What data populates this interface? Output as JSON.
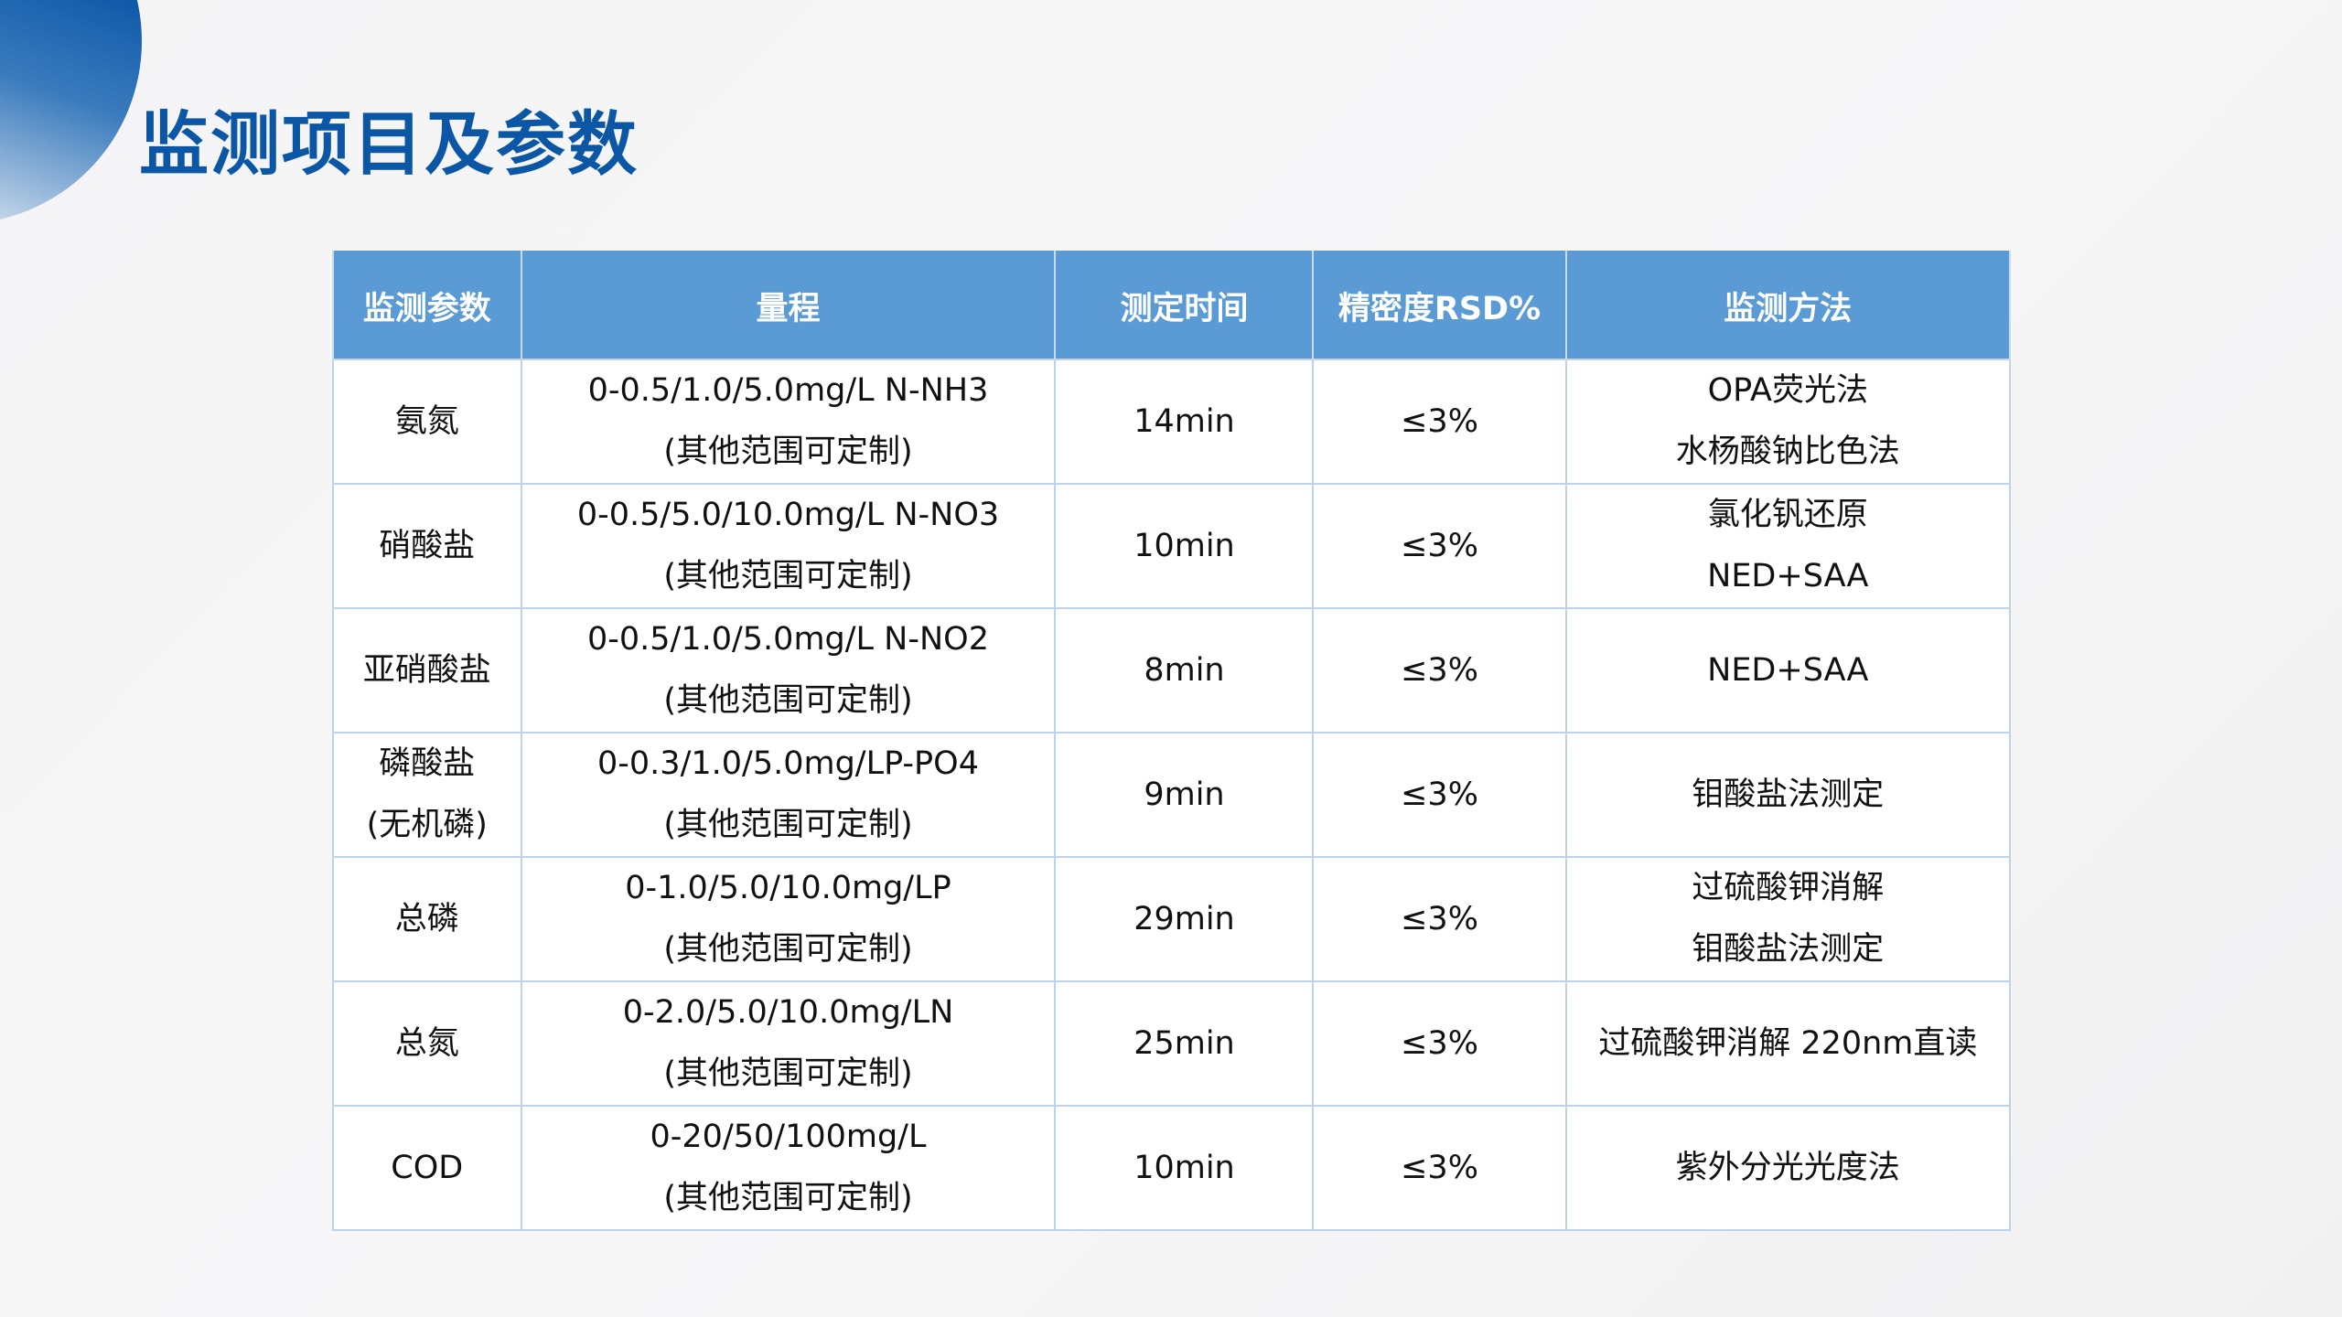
{
  "title": "监测项目及参数",
  "colors": {
    "title": "#0b57a6",
    "header_bg": "#5b9bd5",
    "border": "#bcd3ea"
  },
  "table": {
    "headers": [
      "监测参数",
      "量程",
      "测定时间",
      "精密度RSD%",
      "监测方法"
    ],
    "rows": [
      {
        "param": [
          "氨氮"
        ],
        "range": [
          "0-0.5/1.0/5.0mg/L N-NH3",
          "(其他范围可定制)"
        ],
        "time": "14min",
        "rsd": "≤3%",
        "method": [
          "OPA荧光法",
          "水杨酸钠比色法"
        ]
      },
      {
        "param": [
          "硝酸盐"
        ],
        "range": [
          "0-0.5/5.0/10.0mg/L N-NO3",
          "(其他范围可定制)"
        ],
        "time": "10min",
        "rsd": "≤3%",
        "method": [
          "氯化钒还原",
          "NED+SAA"
        ]
      },
      {
        "param": [
          "亚硝酸盐"
        ],
        "range": [
          "0-0.5/1.0/5.0mg/L N-NO2",
          "(其他范围可定制)"
        ],
        "time": "8min",
        "rsd": "≤3%",
        "method": [
          "NED+SAA"
        ]
      },
      {
        "param": [
          "磷酸盐",
          "(无机磷)"
        ],
        "range": [
          "0-0.3/1.0/5.0mg/LP-PO4",
          "(其他范围可定制)"
        ],
        "time": "9min",
        "rsd": "≤3%",
        "method": [
          "钼酸盐法测定"
        ]
      },
      {
        "param": [
          "总磷"
        ],
        "range": [
          "0-1.0/5.0/10.0mg/LP",
          "(其他范围可定制)"
        ],
        "time": "29min",
        "rsd": "≤3%",
        "method": [
          "过硫酸钾消解",
          "钼酸盐法测定"
        ]
      },
      {
        "param": [
          "总氮"
        ],
        "range": [
          "0-2.0/5.0/10.0mg/LN",
          "(其他范围可定制)"
        ],
        "time": "25min",
        "rsd": "≤3%",
        "method": [
          "过硫酸钾消解 220nm直读"
        ]
      },
      {
        "param": [
          "COD"
        ],
        "range": [
          "0-20/50/100mg/L",
          "(其他范围可定制)"
        ],
        "time": "10min",
        "rsd": "≤3%",
        "method": [
          "紫外分光光度法"
        ]
      }
    ]
  }
}
